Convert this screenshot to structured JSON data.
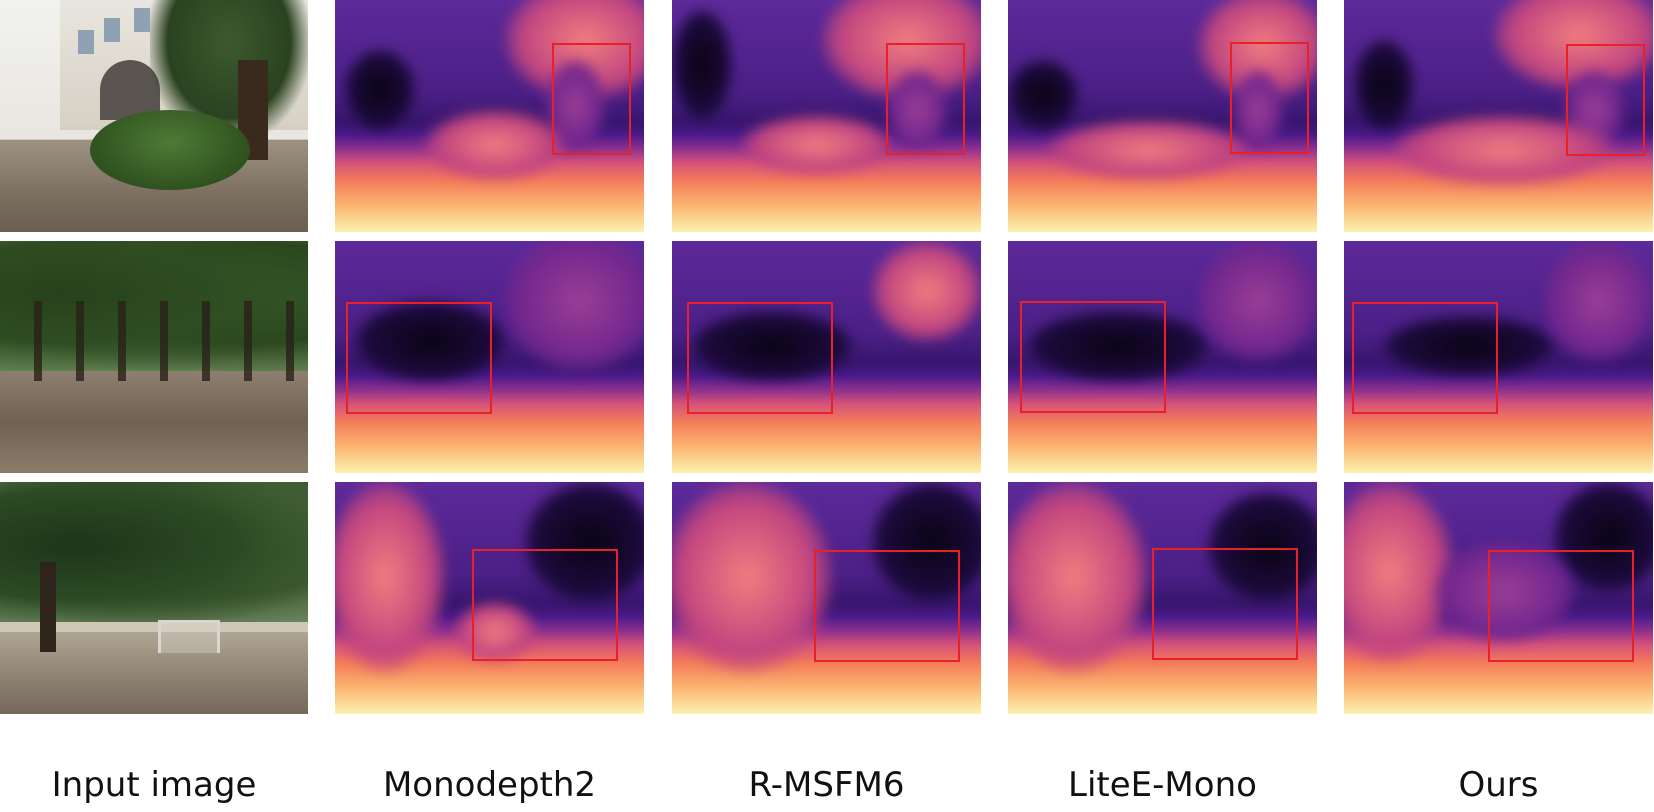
{
  "figure": {
    "columns": [
      {
        "id": "input",
        "caption": "Input image"
      },
      {
        "id": "monodepth2",
        "caption": "Monodepth2"
      },
      {
        "id": "rmsfm6",
        "caption": "R-MSFM6"
      },
      {
        "id": "litee_mono",
        "caption": "LiteE-Mono"
      },
      {
        "id": "ours",
        "caption": "Ours"
      }
    ],
    "rows": 3,
    "colors": {
      "highlight_box": "#e8202a",
      "depth_far": "#1c0a3c",
      "depth_mid": "#7a2a90",
      "depth_near": "#fcf2b0"
    }
  }
}
